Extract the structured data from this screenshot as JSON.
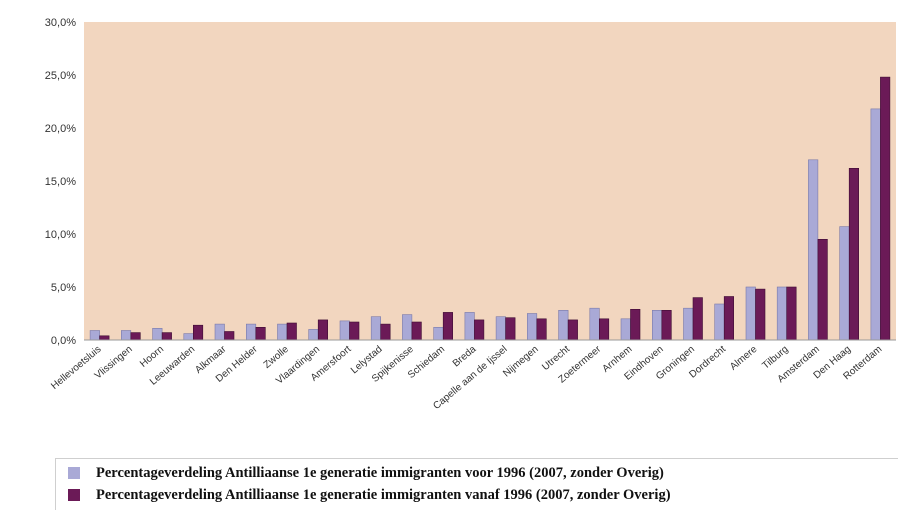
{
  "chart_data": {
    "type": "bar",
    "categories": [
      "Hellevoetsluis",
      "Vlissingen",
      "Hoorn",
      "Leeuwarden",
      "Alkmaar",
      "Den Helder",
      "Zwolle",
      "Vlaardingen",
      "Amersfoort",
      "Lelystad",
      "Spijkenisse",
      "Schiedam",
      "Breda",
      "Capelle aan de Ijssel",
      "Nijmegen",
      "Utrecht",
      "Zoetermeer",
      "Arnhem",
      "Eindhoven",
      "Groningen",
      "Dordrecht",
      "Almere",
      "Tilburg",
      "Amsterdam",
      "Den Haag",
      "Rotterdam"
    ],
    "series": [
      {
        "name": "Percentageverdeling Antilliaanse 1e generatie immigranten voor 1996 (2007, zonder Overig)",
        "color": "#a9a9d6",
        "values": [
          0.9,
          0.9,
          1.1,
          0.6,
          1.5,
          1.5,
          1.5,
          1.0,
          1.8,
          2.2,
          2.4,
          1.2,
          2.6,
          2.2,
          2.5,
          2.8,
          3.0,
          2.0,
          2.8,
          3.0,
          3.4,
          5.0,
          5.0,
          17.0,
          10.7,
          21.8
        ]
      },
      {
        "name": "Percentageverdeling Antilliaanse 1e generatie immigranten vanaf 1996 (2007, zonder Overig)",
        "color": "#6b1a57",
        "values": [
          0.4,
          0.7,
          0.7,
          1.4,
          0.8,
          1.2,
          1.6,
          1.9,
          1.7,
          1.5,
          1.7,
          2.6,
          1.9,
          2.1,
          2.0,
          1.9,
          2.0,
          2.9,
          2.8,
          4.0,
          4.1,
          4.8,
          5.0,
          9.5,
          16.2,
          24.8
        ]
      }
    ],
    "ylim": [
      0,
      30
    ],
    "yticks": [
      "0,0%",
      "5,0%",
      "10,0%",
      "15,0%",
      "20,0%",
      "25,0%",
      "30,0%"
    ],
    "grid": false,
    "plot_background": "#f2d6bf",
    "legend_position": "bottom"
  },
  "legend": {
    "items": [
      {
        "label": "Percentageverdeling Antilliaanse 1e generatie immigranten voor 1996 (2007, zonder Overig)",
        "color": "#a9a9d6"
      },
      {
        "label": "Percentageverdeling Antilliaanse 1e generatie immigranten vanaf 1996 (2007, zonder Overig)",
        "color": "#6b1a57"
      }
    ]
  }
}
